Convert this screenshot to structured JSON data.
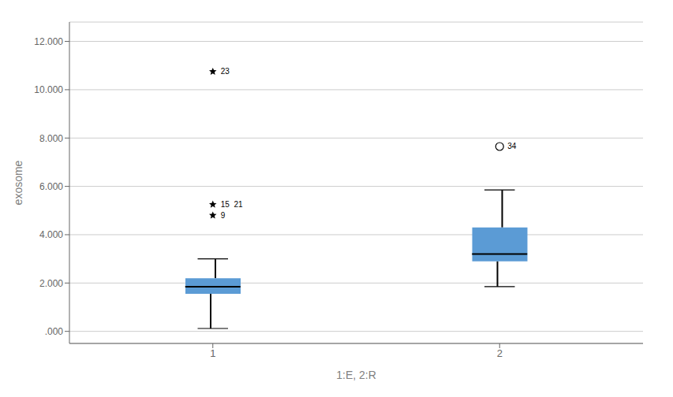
{
  "chart_data": {
    "type": "box",
    "categories": [
      "1",
      "2"
    ],
    "boxes": [
      {
        "median": 1.85,
        "q1": 1.55,
        "q3": 2.2,
        "whisker_low": 0.12,
        "whisker_high": 3.0
      },
      {
        "median": 3.2,
        "q1": 2.9,
        "q3": 4.3,
        "whisker_low": 1.85,
        "whisker_high": 5.85
      }
    ],
    "outliers": [
      {
        "category": "1",
        "value": 4.8,
        "marker": "star"
      },
      {
        "category": "1",
        "value": 5.25,
        "marker": "star"
      },
      {
        "category": "1",
        "value": 10.75,
        "marker": "star"
      },
      {
        "category": "2",
        "value": 7.65,
        "marker": "circle"
      }
    ],
    "annotations": [
      {
        "category": "1",
        "y": 10.75,
        "text": "23"
      },
      {
        "category": "1",
        "y": 5.25,
        "text": "15  21"
      },
      {
        "category": "1",
        "y": 4.8,
        "text": "9"
      },
      {
        "category": "2",
        "y": 7.65,
        "text": "34"
      }
    ],
    "xlabel": "1:E, 2:R",
    "ylabel": "exosome",
    "ylim": [
      -0.5,
      12.8
    ],
    "yticks": [
      {
        "value": 0,
        "label": ".000"
      },
      {
        "value": 2,
        "label": "2.000"
      },
      {
        "value": 4,
        "label": "4.000"
      },
      {
        "value": 6,
        "label": "6.000"
      },
      {
        "value": 8,
        "label": "8.000"
      },
      {
        "value": 10,
        "label": "10.000"
      },
      {
        "value": 12,
        "label": "12.000"
      }
    ],
    "color": "#5b9bd5",
    "grid": true
  }
}
